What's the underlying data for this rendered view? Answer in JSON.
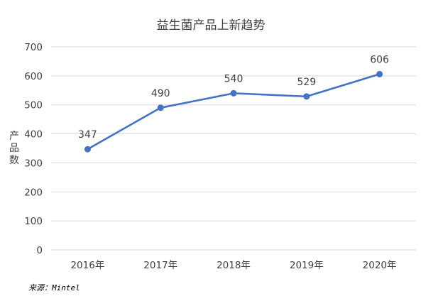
{
  "chart_data": {
    "type": "line",
    "title": "益生菌产品上新趋势",
    "ylabel": "产品数",
    "xlabel": "",
    "categories": [
      "2016年",
      "2017年",
      "2018年",
      "2019年",
      "2020年"
    ],
    "series": [
      {
        "name": "",
        "values": [
          347,
          490,
          540,
          529,
          606
        ],
        "color": "#4472c4"
      }
    ],
    "ylim": [
      0,
      700
    ],
    "yticks": [
      0,
      100,
      200,
      300,
      400,
      500,
      600,
      700
    ],
    "grid": true,
    "legend": "none",
    "data_labels": true
  },
  "source": "来源：Mintel"
}
